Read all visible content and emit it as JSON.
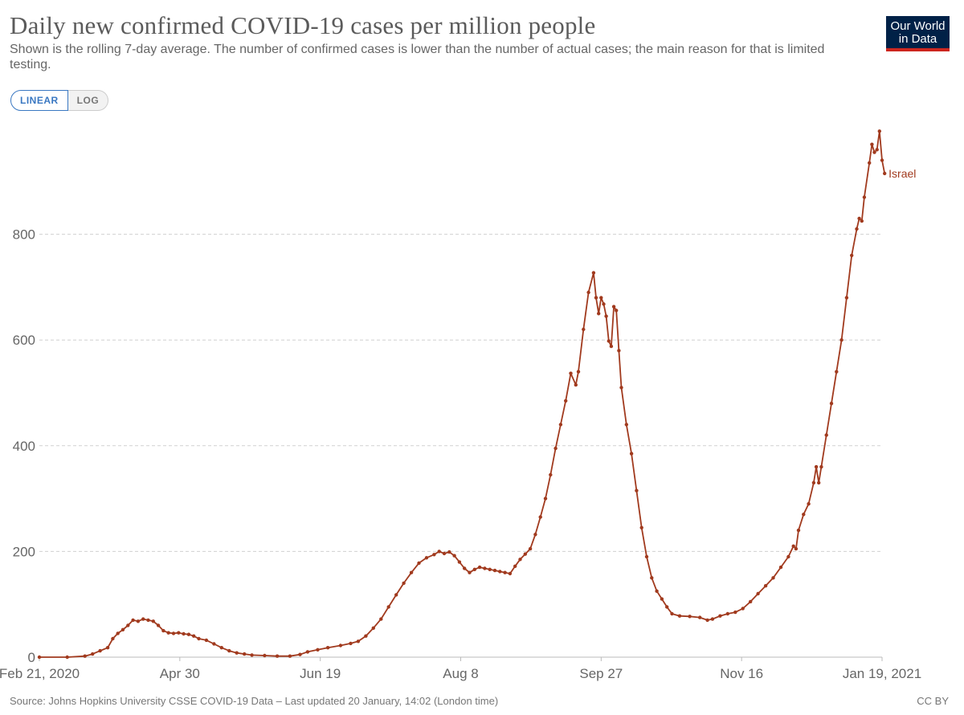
{
  "header": {
    "title": "Daily new confirmed COVID-19 cases per million people",
    "subtitle": "Shown is the rolling 7-day average. The number of confirmed cases is lower than the number of actual cases; the main reason for that is limited testing.",
    "logo_line1": "Our World",
    "logo_line2": "in Data"
  },
  "scale_toggle": {
    "linear_label": "LINEAR",
    "log_label": "LOG",
    "selected": "LINEAR"
  },
  "colors": {
    "series": "#a13a1e",
    "grid": "#d0d0d0",
    "logo_bg": "#002147",
    "logo_accent": "#ce261e",
    "toggle_active": "#3a78c2"
  },
  "footer": {
    "source": "Source: Johns Hopkins University CSSE COVID-19 Data – Last updated 20 January, 14:02 (London time)",
    "license": "CC BY"
  },
  "chart_data": {
    "type": "line",
    "title": "Daily new confirmed COVID-19 cases per million people",
    "xlabel": "",
    "ylabel": "",
    "x_ticks": [
      "Feb 21, 2020",
      "Apr 30",
      "Jun 19",
      "Aug 8",
      "Sep 27",
      "Nov 16",
      "Jan 19, 2021"
    ],
    "y_ticks": [
      0,
      200,
      400,
      600,
      800
    ],
    "xlim": [
      "2020-02-21",
      "2021-01-19"
    ],
    "ylim": [
      0,
      1000
    ],
    "grid": true,
    "series": [
      {
        "name": "Israel",
        "points": [
          [
            "2020-02-21",
            0
          ],
          [
            "2020-03-03",
            0
          ],
          [
            "2020-03-10",
            2
          ],
          [
            "2020-03-13",
            6
          ],
          [
            "2020-03-16",
            12
          ],
          [
            "2020-03-19",
            18
          ],
          [
            "2020-03-21",
            35
          ],
          [
            "2020-03-23",
            45
          ],
          [
            "2020-03-25",
            52
          ],
          [
            "2020-03-27",
            60
          ],
          [
            "2020-03-29",
            70
          ],
          [
            "2020-03-31",
            68
          ],
          [
            "2020-04-02",
            72
          ],
          [
            "2020-04-04",
            70
          ],
          [
            "2020-04-06",
            68
          ],
          [
            "2020-04-08",
            60
          ],
          [
            "2020-04-10",
            50
          ],
          [
            "2020-04-12",
            46
          ],
          [
            "2020-04-14",
            45
          ],
          [
            "2020-04-16",
            46
          ],
          [
            "2020-04-18",
            44
          ],
          [
            "2020-04-20",
            43
          ],
          [
            "2020-04-22",
            40
          ],
          [
            "2020-04-24",
            35
          ],
          [
            "2020-04-27",
            32
          ],
          [
            "2020-04-30",
            25
          ],
          [
            "2020-05-03",
            18
          ],
          [
            "2020-05-06",
            12
          ],
          [
            "2020-05-09",
            8
          ],
          [
            "2020-05-12",
            6
          ],
          [
            "2020-05-15",
            4
          ],
          [
            "2020-05-20",
            3
          ],
          [
            "2020-05-25",
            2
          ],
          [
            "2020-05-30",
            2
          ],
          [
            "2020-06-03",
            5
          ],
          [
            "2020-06-06",
            10
          ],
          [
            "2020-06-10",
            14
          ],
          [
            "2020-06-14",
            18
          ],
          [
            "2020-06-19",
            22
          ],
          [
            "2020-06-23",
            26
          ],
          [
            "2020-06-26",
            30
          ],
          [
            "2020-06-29",
            40
          ],
          [
            "2020-07-02",
            55
          ],
          [
            "2020-07-05",
            72
          ],
          [
            "2020-07-08",
            95
          ],
          [
            "2020-07-11",
            118
          ],
          [
            "2020-07-14",
            140
          ],
          [
            "2020-07-17",
            160
          ],
          [
            "2020-07-20",
            178
          ],
          [
            "2020-07-23",
            188
          ],
          [
            "2020-07-26",
            194
          ],
          [
            "2020-07-28",
            200
          ],
          [
            "2020-07-30",
            196
          ],
          [
            "2020-08-01",
            199
          ],
          [
            "2020-08-03",
            192
          ],
          [
            "2020-08-05",
            180
          ],
          [
            "2020-08-07",
            168
          ],
          [
            "2020-08-09",
            160
          ],
          [
            "2020-08-11",
            166
          ],
          [
            "2020-08-13",
            170
          ],
          [
            "2020-08-15",
            168
          ],
          [
            "2020-08-17",
            166
          ],
          [
            "2020-08-19",
            164
          ],
          [
            "2020-08-21",
            162
          ],
          [
            "2020-08-23",
            160
          ],
          [
            "2020-08-25",
            158
          ],
          [
            "2020-08-27",
            172
          ],
          [
            "2020-08-29",
            185
          ],
          [
            "2020-08-31",
            195
          ],
          [
            "2020-09-02",
            205
          ],
          [
            "2020-09-04",
            232
          ],
          [
            "2020-09-06",
            265
          ],
          [
            "2020-09-08",
            300
          ],
          [
            "2020-09-10",
            345
          ],
          [
            "2020-09-12",
            395
          ],
          [
            "2020-09-14",
            440
          ],
          [
            "2020-09-16",
            485
          ],
          [
            "2020-09-18",
            537
          ],
          [
            "2020-09-20",
            515
          ],
          [
            "2020-09-21",
            540
          ],
          [
            "2020-09-23",
            620
          ],
          [
            "2020-09-25",
            690
          ],
          [
            "2020-09-27",
            727
          ],
          [
            "2020-09-28",
            680
          ],
          [
            "2020-09-29",
            650
          ],
          [
            "2020-09-30",
            680
          ],
          [
            "2020-10-01",
            668
          ],
          [
            "2020-10-02",
            645
          ],
          [
            "2020-10-03",
            598
          ],
          [
            "2020-10-04",
            588
          ],
          [
            "2020-10-05",
            663
          ],
          [
            "2020-10-06",
            656
          ],
          [
            "2020-10-07",
            580
          ],
          [
            "2020-10-08",
            510
          ],
          [
            "2020-10-10",
            440
          ],
          [
            "2020-10-12",
            385
          ],
          [
            "2020-10-14",
            315
          ],
          [
            "2020-10-16",
            245
          ],
          [
            "2020-10-18",
            190
          ],
          [
            "2020-10-20",
            150
          ],
          [
            "2020-10-22",
            125
          ],
          [
            "2020-10-24",
            110
          ],
          [
            "2020-10-26",
            95
          ],
          [
            "2020-10-28",
            82
          ],
          [
            "2020-10-31",
            78
          ],
          [
            "2020-11-04",
            77
          ],
          [
            "2020-11-08",
            75
          ],
          [
            "2020-11-11",
            70
          ],
          [
            "2020-11-13",
            72
          ],
          [
            "2020-11-16",
            78
          ],
          [
            "2020-11-19",
            82
          ],
          [
            "2020-11-22",
            85
          ],
          [
            "2020-11-25",
            92
          ],
          [
            "2020-11-28",
            105
          ],
          [
            "2020-12-01",
            120
          ],
          [
            "2020-12-04",
            135
          ],
          [
            "2020-12-07",
            150
          ],
          [
            "2020-12-10",
            170
          ],
          [
            "2020-12-13",
            190
          ],
          [
            "2020-12-15",
            210
          ],
          [
            "2020-12-16",
            205
          ],
          [
            "2020-12-17",
            240
          ],
          [
            "2020-12-19",
            270
          ],
          [
            "2020-12-21",
            290
          ],
          [
            "2020-12-23",
            330
          ],
          [
            "2020-12-24",
            360
          ],
          [
            "2020-12-25",
            330
          ],
          [
            "2020-12-26",
            360
          ],
          [
            "2020-12-28",
            420
          ],
          [
            "2020-12-30",
            480
          ],
          [
            "2021-01-01",
            540
          ],
          [
            "2021-01-03",
            600
          ],
          [
            "2021-01-05",
            680
          ],
          [
            "2021-01-07",
            760
          ],
          [
            "2021-01-09",
            810
          ],
          [
            "2021-01-10",
            830
          ],
          [
            "2021-01-11",
            825
          ],
          [
            "2021-01-12",
            870
          ],
          [
            "2021-01-14",
            935
          ],
          [
            "2021-01-15",
            970
          ],
          [
            "2021-01-16",
            955
          ],
          [
            "2021-01-17",
            960
          ],
          [
            "2021-01-18",
            995
          ],
          [
            "2021-01-19",
            940
          ],
          [
            "2021-01-20",
            915
          ]
        ]
      }
    ]
  }
}
